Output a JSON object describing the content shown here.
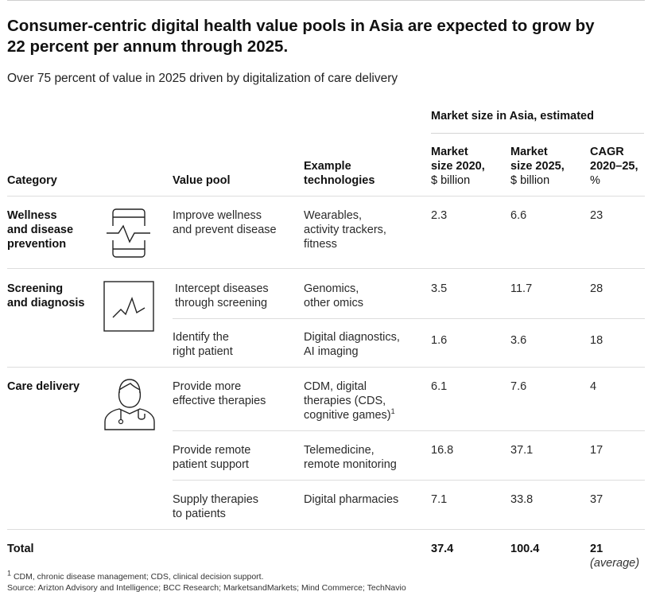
{
  "title": "Consumer-centric digital health value pools in Asia are expected to grow by 22 percent per annum through 2025.",
  "subtitle": "Over 75 percent of value in 2025 driven by digitalization of care delivery",
  "group_header": "Market size in Asia, estimated",
  "headers": {
    "category": "Category",
    "value_pool": "Value pool",
    "tech_line1": "Example",
    "tech_line2": "technologies",
    "m2020_line1": "Market",
    "m2020_line2": "size 2020,",
    "m2020_line3": "$ billion",
    "m2025_line1": "Market",
    "m2025_line2": "size 2025,",
    "m2025_line3": "$ billion",
    "cagr_line1": "CAGR",
    "cagr_line2": "2020–25,",
    "cagr_line3": "%"
  },
  "categories": [
    {
      "label_lines": [
        "Wellness",
        "and disease",
        "prevention"
      ],
      "icon": "smartphone-heartbeat-icon"
    },
    {
      "label_lines": [
        "Screening",
        "and diagnosis"
      ],
      "icon": "monitor-graph-icon"
    },
    {
      "label_lines": [
        "Care delivery"
      ],
      "icon": "doctor-stethoscope-icon"
    }
  ],
  "rows": [
    {
      "pool": [
        "Improve wellness",
        "and prevent disease"
      ],
      "tech": [
        "Wearables,",
        "activity trackers,",
        "fitness"
      ],
      "m2020": "2.3",
      "m2025": "6.6",
      "cagr": "23"
    },
    {
      "pool": [
        "Intercept diseases",
        "through screening"
      ],
      "tech": [
        "Genomics,",
        "other omics"
      ],
      "m2020": "3.5",
      "m2025": "11.7",
      "cagr": "28"
    },
    {
      "pool": [
        "Identify the",
        "right patient"
      ],
      "tech": [
        "Digital diagnostics,",
        "AI imaging"
      ],
      "m2020": "1.6",
      "m2025": "3.6",
      "cagr": "18"
    },
    {
      "pool": [
        "Provide more",
        "effective therapies"
      ],
      "tech": [
        "CDM, digital",
        "therapies (CDS,",
        "cognitive games)"
      ],
      "tech_footnote": "1",
      "m2020": "6.1",
      "m2025": "7.6",
      "cagr": "4"
    },
    {
      "pool": [
        "Provide remote",
        "patient support"
      ],
      "tech": [
        "Telemedicine,",
        "remote monitoring"
      ],
      "m2020": "16.8",
      "m2025": "37.1",
      "cagr": "17"
    },
    {
      "pool": [
        "Supply therapies",
        "to patients"
      ],
      "tech": [
        "Digital pharmacies"
      ],
      "m2020": "7.1",
      "m2025": "33.8",
      "cagr": "37"
    }
  ],
  "total": {
    "label": "Total",
    "m2020": "37.4",
    "m2025": "100.4",
    "cagr": "21",
    "cagr_note": "(average)"
  },
  "footnote_marker": "1",
  "footnote_text": "CDM, chronic disease management; CDS, clinical decision support.",
  "source": "Source: Arizton Advisory and Intelligence; BCC Research; MarketsandMarkets; Mind Commerce; TechNavio",
  "colors": {
    "text": "#111111",
    "rule": "#dddddd"
  }
}
